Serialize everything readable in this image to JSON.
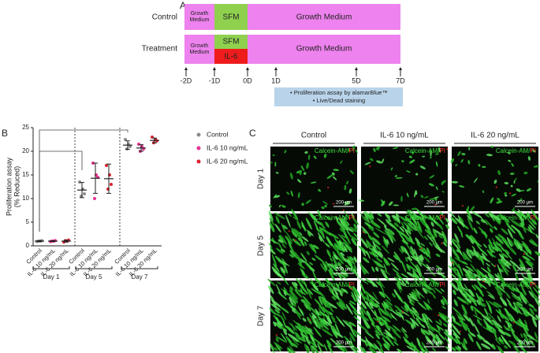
{
  "panel_a": {
    "label": "A",
    "rows": [
      {
        "name": "Control",
        "segments": [
          "Growth Medium",
          "SFM",
          "Growth Medium"
        ]
      },
      {
        "name": "Treatment",
        "segments": [
          "Growth Medium",
          "SFM",
          "IL-6",
          "Growth Medium"
        ]
      }
    ],
    "timeline": [
      "-2D",
      "-1D",
      "0D",
      "1D",
      "5D",
      "7D"
    ],
    "assays": [
      "• Proliferation assay by alamarBlue™",
      "• Live/Dead staining"
    ]
  },
  "chart_data": {
    "type": "dot",
    "label": "B",
    "y_label": [
      "Proliferation assay",
      "(% Reduced)"
    ],
    "groups": [
      "Day 1",
      "Day 5",
      "Day 7"
    ],
    "series": [
      {
        "name": "Control",
        "color": "#8c8c8c",
        "values": [
          1.0,
          11.8,
          21.3
        ],
        "errors": [
          0.1,
          1.6,
          0.9
        ],
        "points": [
          [
            0.9,
            1.0,
            1.1,
            1.0
          ],
          [
            13.5,
            12,
            11,
            10.5
          ],
          [
            22.5,
            21.5,
            21,
            20.5
          ]
        ]
      },
      {
        "name": "IL-6 10 ng/mL",
        "color": "#e5318f",
        "values": [
          1.0,
          14.3,
          20.7
        ],
        "errors": [
          0.1,
          3.2,
          0.7
        ],
        "points": [
          [
            0.9,
            1.0,
            1.1,
            1.0
          ],
          [
            17.5,
            15,
            14.5,
            10
          ],
          [
            21.5,
            21,
            20.5,
            20
          ]
        ]
      },
      {
        "name": "IL-6 20 ng/mL",
        "color": "#d8232f",
        "values": [
          1.0,
          14.2,
          22.3
        ],
        "errors": [
          0.2,
          3.1,
          0.5
        ],
        "points": [
          [
            0.8,
            1.0,
            1.2,
            1.1
          ],
          [
            17,
            15,
            13,
            12
          ],
          [
            23,
            22.5,
            22.2,
            21.8
          ]
        ]
      }
    ],
    "ylim": [
      0,
      25
    ],
    "yticks": [
      0,
      5,
      10,
      15,
      20,
      25
    ],
    "legend": "right"
  },
  "panel_c": {
    "label": "C",
    "columns": [
      "Control",
      "IL-6 10 ng/mL",
      "IL-6 20 ng/mL"
    ],
    "rows": [
      "Day 1",
      "Day 5",
      "Day 7"
    ],
    "stain": [
      "Calcein-AM/",
      "PI"
    ],
    "scale_bar": "200 μm"
  }
}
